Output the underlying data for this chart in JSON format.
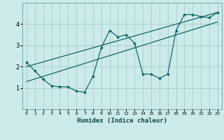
{
  "xlabel": "Humidex (Indice chaleur)",
  "bg_color": "#cceaea",
  "line_color": "#116666",
  "grid_color": "#aacccc",
  "xlim": [
    -0.5,
    23.5
  ],
  "ylim": [
    0,
    5
  ],
  "yticks": [
    1,
    2,
    3,
    4
  ],
  "xticks": [
    0,
    1,
    2,
    3,
    4,
    5,
    6,
    7,
    8,
    9,
    10,
    11,
    12,
    13,
    14,
    15,
    16,
    17,
    18,
    19,
    20,
    21,
    22,
    23
  ],
  "line1_x": [
    0,
    1,
    2,
    3,
    4,
    5,
    6,
    7,
    8,
    9,
    10,
    11,
    12,
    13,
    14,
    15,
    16,
    17,
    18,
    19,
    20,
    21,
    22,
    23
  ],
  "line1_y": [
    2.2,
    1.8,
    1.4,
    1.1,
    1.05,
    1.05,
    0.85,
    0.8,
    1.55,
    2.9,
    3.7,
    3.4,
    3.5,
    3.1,
    1.65,
    1.65,
    1.45,
    1.65,
    3.7,
    4.45,
    4.45,
    4.35,
    4.3,
    4.55
  ],
  "line2_x": [
    0,
    23
  ],
  "line2_y": [
    2.0,
    4.55
  ],
  "line3_x": [
    0,
    23
  ],
  "line3_y": [
    1.3,
    4.1
  ]
}
